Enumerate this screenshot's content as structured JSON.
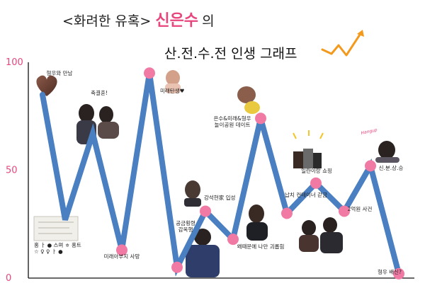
{
  "title": {
    "line1_prefix": "<화려한 유혹> ",
    "line1_accent": "신은수",
    "line1_suffix": "의",
    "line2": "산.전.수.전 인생 그래프"
  },
  "colors": {
    "line": "#4a7fc1",
    "point": "#f07aa4",
    "accent": "#e8457e",
    "axis": "#111111"
  },
  "chart_data": {
    "type": "line",
    "ylim": [
      0,
      100
    ],
    "yticks": [
      "0",
      "50",
      "100"
    ],
    "points": [
      {
        "y": 85,
        "label": "형우와 만남",
        "marker": false
      },
      {
        "y": 27
      },
      {
        "y": 67,
        "label": "축결혼!",
        "marker": false
      },
      {
        "y": 13,
        "label": "미래아부지 사망",
        "marker": true
      },
      {
        "y": 95,
        "label": "미래탄생♥",
        "marker": true
      },
      {
        "y": 5,
        "label": "공금횡령\n감옥행",
        "marker": true
      },
      {
        "y": 31,
        "label": "강석현家 입성",
        "marker": true
      },
      {
        "y": 18,
        "label": "왜때문에 나만 괴롭힘",
        "marker": true
      },
      {
        "y": 74,
        "label": "은수&미래&형우\n놀이공원 데이트",
        "marker": true
      },
      {
        "y": 30,
        "label": "납치 컨테이너 갇금",
        "marker": true
      },
      {
        "y": 44,
        "label": "일란이랑 쇼핑",
        "marker": true
      },
      {
        "y": 31,
        "label": "2억원 사건",
        "marker": true
      },
      {
        "y": 52,
        "label": "신.분.상.승",
        "marker": true
      },
      {
        "y": 2,
        "label": "형우 배신?",
        "marker": true
      }
    ],
    "extra_text": {
      "scribble": "홍  ㅏ ●  스며 ㅎ 홍트\n☆ ♀ ♀ ㅏ ●",
      "tag": "Hangup"
    }
  }
}
